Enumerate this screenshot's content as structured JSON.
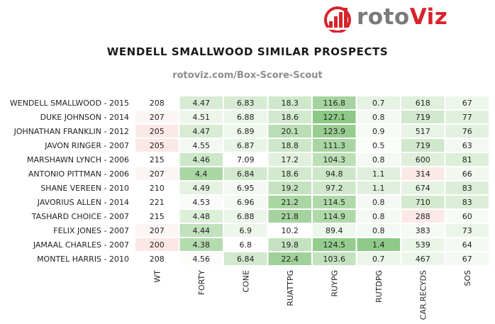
{
  "brand": {
    "logo_text_part1": "roto",
    "logo_text_part2": "Viz",
    "gray": "#7a7a7a",
    "red": "#d7242b"
  },
  "chart_data": {
    "type": "heatmap",
    "title": "WENDELL SMALLWOOD SIMILAR PROSPECTS",
    "subtitle": "rotoviz.com/Box-Score-Scout",
    "columns": [
      "WT",
      "FORTY",
      "CONE",
      "RUATTPG",
      "RUYPG",
      "RUTDPG",
      "CAR.RECYDS",
      "SOS"
    ],
    "rows": [
      "WENDELL SMALLWOOD - 2015",
      "DUKE JOHNSON - 2014",
      "JOHNATHAN FRANKLIN - 2012",
      "JAVON RINGER - 2007",
      "MARSHAWN LYNCH - 2006",
      "ANTONIO PITTMAN - 2006",
      "SHANE VEREEN - 2010",
      "JAVORIUS ALLEN - 2014",
      "TASHARD CHOICE - 2007",
      "FELIX JONES - 2007",
      "JAMAAL CHARLES - 2007",
      "MONTEL HARRIS - 2010"
    ],
    "values": [
      [
        "208",
        "4.47",
        "6.83",
        "18.3",
        "116.8",
        "0.7",
        "618",
        "67"
      ],
      [
        "207",
        "4.51",
        "6.88",
        "18.6",
        "127.1",
        "0.8",
        "719",
        "77"
      ],
      [
        "205",
        "4.47",
        "6.89",
        "20.1",
        "123.9",
        "0.9",
        "517",
        "76"
      ],
      [
        "205",
        "4.55",
        "6.87",
        "18.8",
        "111.3",
        "0.5",
        "719",
        "63"
      ],
      [
        "215",
        "4.46",
        "7.09",
        "17.2",
        "104.3",
        "0.8",
        "600",
        "81"
      ],
      [
        "207",
        "4.4",
        "6.84",
        "18.6",
        "94.8",
        "1.1",
        "314",
        "66"
      ],
      [
        "210",
        "4.49",
        "6.95",
        "19.2",
        "97.2",
        "1.1",
        "674",
        "83"
      ],
      [
        "221",
        "4.53",
        "6.96",
        "21.2",
        "114.5",
        "0.8",
        "710",
        "83"
      ],
      [
        "215",
        "4.48",
        "6.88",
        "21.8",
        "114.9",
        "0.8",
        "288",
        "60"
      ],
      [
        "207",
        "4.44",
        "6.9",
        "10.2",
        "89.4",
        "0.8",
        "383",
        "73"
      ],
      [
        "200",
        "4.38",
        "6.8",
        "19.8",
        "124.5",
        "1.4",
        "539",
        "64"
      ],
      [
        "208",
        "4.56",
        "6.84",
        "22.4",
        "103.6",
        "0.7",
        "467",
        "67"
      ]
    ],
    "cell_colors": [
      [
        "#ffffff",
        "#d7ecd3",
        "#d6ecd2",
        "#cfe8cb",
        "#a6d4a0",
        "#e6f2e3",
        "#e0f0dd",
        "#eef6ec"
      ],
      [
        "#fbf6f5",
        "#eef6ec",
        "#ecf5ea",
        "#d1e9cd",
        "#8dc986",
        "#f4f9f3",
        "#d0e8cc",
        "#e0f0dd"
      ],
      [
        "#fde8e8",
        "#d7ecd3",
        "#eff7ed",
        "#b9ddb4",
        "#97cd90",
        "#f6fbf5",
        "#e8f4e6",
        "#e3f1e0"
      ],
      [
        "#fde8e8",
        "#f3f9f2",
        "#e9f4e7",
        "#cde7c9",
        "#a8d5a2",
        "#fbfdfa",
        "#d0e8cc",
        "#f3f9f2"
      ],
      [
        "#ffffff",
        "#cde7c9",
        "#ffffff",
        "#e1f0de",
        "#bcdfb6",
        "#f4f9f3",
        "#dfefdc",
        "#dcefd8"
      ],
      [
        "#fbf6f5",
        "#a9d6a3",
        "#d2e9ce",
        "#d1e9cd",
        "#cce6c8",
        "#e1f0de",
        "#fde8e8",
        "#f2f8f0"
      ],
      [
        "#ffffff",
        "#e5f2e2",
        "#f3f9f2",
        "#c5e3c0",
        "#cfe8cb",
        "#e1f0de",
        "#e6f3e4",
        "#dbeed7"
      ],
      [
        "#ffffff",
        "#fafcf9",
        "#f4f9f3",
        "#aad6a4",
        "#b0d9aa",
        "#f4f9f3",
        "#d4eacf",
        "#dbeed7"
      ],
      [
        "#ffffff",
        "#dcefd8",
        "#ecf5ea",
        "#a5d39f",
        "#b0d9aa",
        "#f4f9f3",
        "#fde8e8",
        "#f7fbf6"
      ],
      [
        "#fbf6f5",
        "#c2e1bd",
        "#eef6ec",
        "#ffffff",
        "#eef7ec",
        "#f4f9f3",
        "#f5faf4",
        "#ebf5e9"
      ],
      [
        "#fde6e6",
        "#b4dbae",
        "#ffffff",
        "#c4e2bf",
        "#94cc8d",
        "#8fca88",
        "#eaf5e8",
        "#f3f9f2"
      ],
      [
        "#ffffff",
        "#fcfdfb",
        "#d2e9ce",
        "#a1d19b",
        "#c4e2bf",
        "#ebf5e9",
        "#edf6eb",
        "#f4f9f3"
      ]
    ],
    "grid": false,
    "legend": "none"
  }
}
